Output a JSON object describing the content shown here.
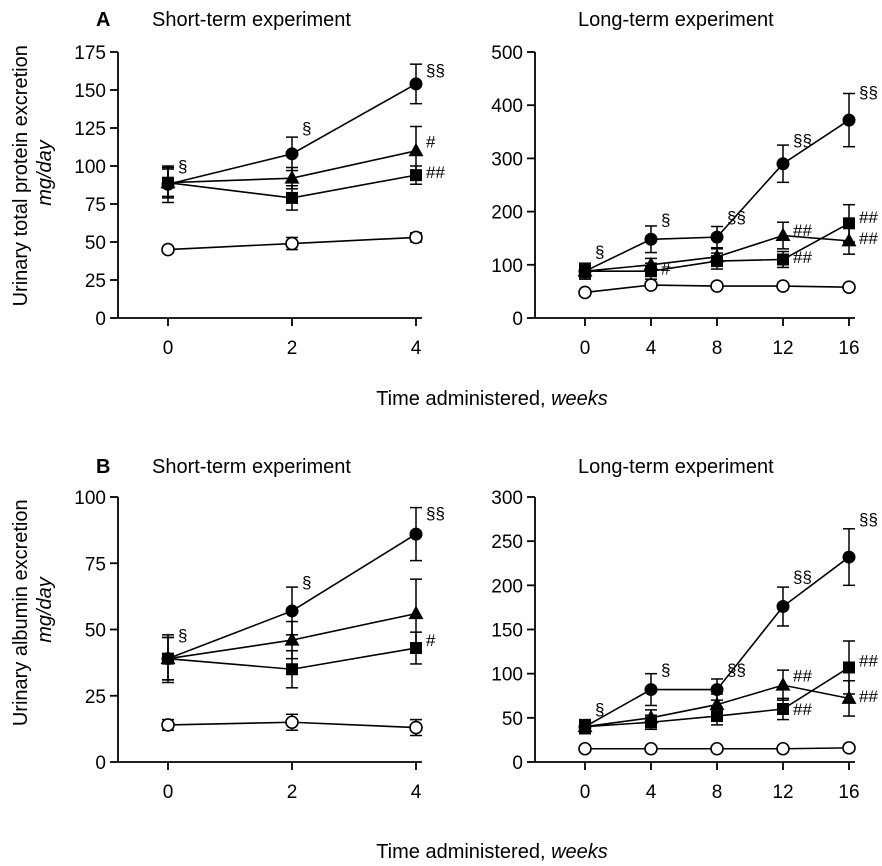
{
  "figure": {
    "panel_a_letter": "A",
    "panel_b_letter": "B",
    "xlabel_main": "Time administered,",
    "xlabel_unit": "weeks",
    "ylabel_a_main": "Urinary total protein excretion",
    "ylabel_a_unit": "mg/day",
    "ylabel_b_main": "Urinary albumin excretion",
    "ylabel_b_unit": "mg/day"
  },
  "chart_data": [
    {
      "id": "a-short",
      "type": "line",
      "title": "Short-term experiment",
      "xlabel": "Time administered, weeks",
      "ylabel": "Urinary total protein excretion mg/day",
      "x": [
        0,
        2,
        4
      ],
      "xticks": [
        "0",
        "2",
        "4"
      ],
      "xlim": [
        0,
        4
      ],
      "ylim": [
        0,
        175
      ],
      "yticks": [
        "0",
        "25",
        "50",
        "75",
        "100",
        "125",
        "150",
        "175"
      ],
      "series": [
        {
          "marker": "filled-circle",
          "values": [
            88,
            108,
            154
          ],
          "err": [
            12,
            11,
            13
          ]
        },
        {
          "marker": "filled-triangle",
          "values": [
            89,
            92,
            110
          ],
          "err": [
            9,
            7,
            16
          ]
        },
        {
          "marker": "filled-square",
          "values": [
            89,
            79,
            94
          ],
          "err": [
            10,
            8,
            6
          ]
        },
        {
          "marker": "open-circle",
          "values": [
            45,
            49,
            53
          ],
          "err": [
            2,
            4,
            3
          ]
        }
      ],
      "annotations": [
        {
          "x": 0,
          "y": 100,
          "text": "§"
        },
        {
          "x": 2,
          "y": 125,
          "text": "§"
        },
        {
          "x": 4,
          "y": 163,
          "text": "§§"
        },
        {
          "x": 4,
          "y": 116,
          "text": "#"
        },
        {
          "x": 4,
          "y": 96,
          "text": "##"
        }
      ]
    },
    {
      "id": "a-long",
      "type": "line",
      "title": "Long-term experiment",
      "xlabel": "Time administered, weeks",
      "ylabel": "Urinary total protein excretion mg/day",
      "x": [
        0,
        4,
        8,
        12,
        16
      ],
      "xticks": [
        "0",
        "4",
        "8",
        "12",
        "16"
      ],
      "xlim": [
        0,
        16
      ],
      "ylim": [
        0,
        500
      ],
      "yticks": [
        "0",
        "100",
        "200",
        "300",
        "400",
        "500"
      ],
      "series": [
        {
          "marker": "filled-circle",
          "values": [
            88,
            148,
            152,
            290,
            372
          ],
          "err": [
            15,
            25,
            20,
            35,
            50
          ]
        },
        {
          "marker": "filled-triangle",
          "values": [
            88,
            100,
            115,
            155,
            145
          ],
          "err": [
            10,
            12,
            15,
            25,
            25
          ]
        },
        {
          "marker": "filled-square",
          "values": [
            88,
            88,
            107,
            110,
            178
          ],
          "err": [
            12,
            15,
            15,
            15,
            35
          ]
        },
        {
          "marker": "open-circle",
          "values": [
            48,
            62,
            60,
            60,
            58
          ],
          "err": [
            3,
            4,
            4,
            4,
            4
          ]
        }
      ],
      "annotations": [
        {
          "x": 0,
          "y": 125,
          "text": "§"
        },
        {
          "x": 4,
          "y": 185,
          "text": "§"
        },
        {
          "x": 8,
          "y": 190,
          "text": "§§"
        },
        {
          "x": 12,
          "y": 335,
          "text": "§§"
        },
        {
          "x": 16,
          "y": 425,
          "text": "§§"
        },
        {
          "x": 4,
          "y": 93,
          "text": "#"
        },
        {
          "x": 12,
          "y": 165,
          "text": "##"
        },
        {
          "x": 12,
          "y": 115,
          "text": "##"
        },
        {
          "x": 16,
          "y": 190,
          "text": "##"
        },
        {
          "x": 16,
          "y": 150,
          "text": "##"
        }
      ]
    },
    {
      "id": "b-short",
      "type": "line",
      "title": "Short-term experiment",
      "xlabel": "Time administered, weeks",
      "ylabel": "Urinary albumin excretion mg/day",
      "x": [
        0,
        2,
        4
      ],
      "xticks": [
        "0",
        "2",
        "4"
      ],
      "xlim": [
        0,
        4
      ],
      "ylim": [
        0,
        100
      ],
      "yticks": [
        "0",
        "25",
        "50",
        "75",
        "100"
      ],
      "series": [
        {
          "marker": "filled-circle",
          "values": [
            39,
            57,
            86
          ],
          "err": [
            9,
            9,
            10
          ]
        },
        {
          "marker": "filled-triangle",
          "values": [
            39,
            46,
            56
          ],
          "err": [
            8,
            7,
            13
          ]
        },
        {
          "marker": "filled-square",
          "values": [
            39,
            35,
            43
          ],
          "err": [
            8,
            7,
            6
          ]
        },
        {
          "marker": "open-circle",
          "values": [
            14,
            15,
            13
          ],
          "err": [
            2,
            3,
            3
          ]
        }
      ],
      "annotations": [
        {
          "x": 0,
          "y": 48,
          "text": "§"
        },
        {
          "x": 2,
          "y": 68,
          "text": "§"
        },
        {
          "x": 4,
          "y": 94,
          "text": "§§"
        },
        {
          "x": 4,
          "y": 46,
          "text": "#"
        }
      ]
    },
    {
      "id": "b-long",
      "type": "line",
      "title": "Long-term experiment",
      "xlabel": "Time administered, weeks",
      "ylabel": "Urinary albumin excretion mg/day",
      "x": [
        0,
        4,
        8,
        12,
        16
      ],
      "xticks": [
        "0",
        "4",
        "8",
        "12",
        "16"
      ],
      "xlim": [
        0,
        16
      ],
      "ylim": [
        0,
        300
      ],
      "yticks": [
        "0",
        "50",
        "100",
        "150",
        "200",
        "250",
        "300"
      ],
      "series": [
        {
          "marker": "filled-circle",
          "values": [
            40,
            82,
            82,
            176,
            232
          ],
          "err": [
            8,
            18,
            12,
            22,
            32
          ]
        },
        {
          "marker": "filled-triangle",
          "values": [
            40,
            50,
            65,
            87,
            72
          ],
          "err": [
            6,
            9,
            12,
            17,
            20
          ]
        },
        {
          "marker": "filled-square",
          "values": [
            40,
            45,
            52,
            60,
            107
          ],
          "err": [
            7,
            8,
            10,
            12,
            30
          ]
        },
        {
          "marker": "open-circle",
          "values": [
            15,
            15,
            15,
            15,
            16
          ],
          "err": [
            1,
            1,
            1,
            1,
            1
          ]
        }
      ],
      "annotations": [
        {
          "x": 0,
          "y": 60,
          "text": "§"
        },
        {
          "x": 4,
          "y": 105,
          "text": "§"
        },
        {
          "x": 8,
          "y": 105,
          "text": "§§"
        },
        {
          "x": 12,
          "y": 210,
          "text": "§§"
        },
        {
          "x": 16,
          "y": 275,
          "text": "§§"
        },
        {
          "x": 12,
          "y": 98,
          "text": "##"
        },
        {
          "x": 12,
          "y": 60,
          "text": "##"
        },
        {
          "x": 16,
          "y": 115,
          "text": "##"
        },
        {
          "x": 16,
          "y": 75,
          "text": "##"
        }
      ]
    }
  ]
}
